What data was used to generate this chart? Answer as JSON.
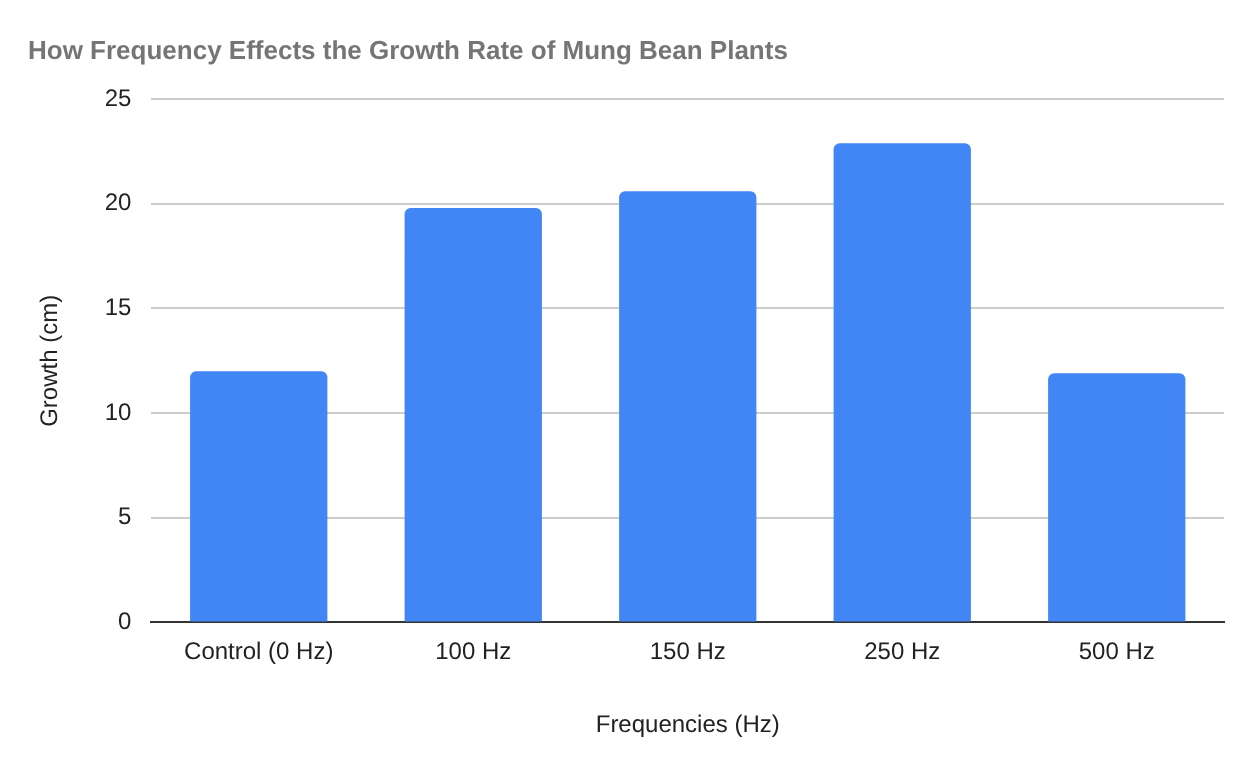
{
  "chart_data": {
    "type": "bar",
    "title": "How Frequency Effects the Growth Rate of Mung Bean Plants",
    "xlabel": "Frequencies (Hz)",
    "ylabel": "Growth (cm)",
    "categories": [
      "Control (0 Hz)",
      "100 Hz",
      "150 Hz",
      "250 Hz",
      "500 Hz"
    ],
    "values": [
      12.0,
      19.8,
      20.6,
      22.9,
      11.9
    ],
    "color": "#4285f4",
    "ylim": [
      0,
      25
    ],
    "yticks": [
      0,
      5,
      10,
      15,
      20,
      25
    ],
    "grid": "y"
  }
}
